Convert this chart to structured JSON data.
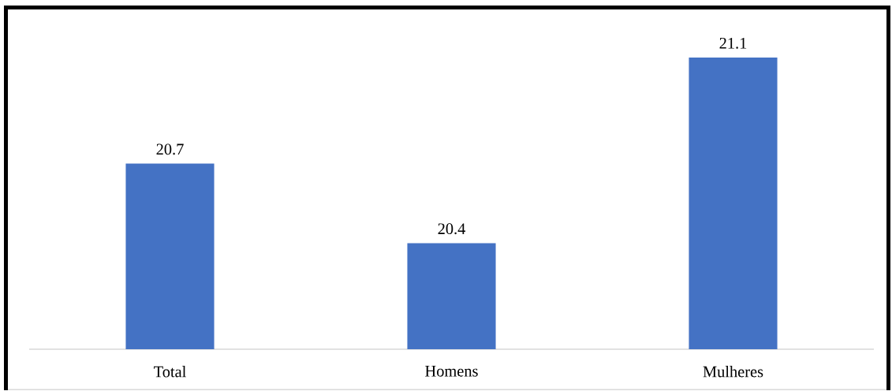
{
  "chart_data": {
    "type": "bar",
    "categories": [
      "Total",
      "Homens",
      "Mulheres"
    ],
    "values": [
      20.7,
      20.4,
      21.1
    ],
    "color": "#4472c4",
    "ylim": [
      20,
      21.1
    ],
    "data_labels": true
  }
}
